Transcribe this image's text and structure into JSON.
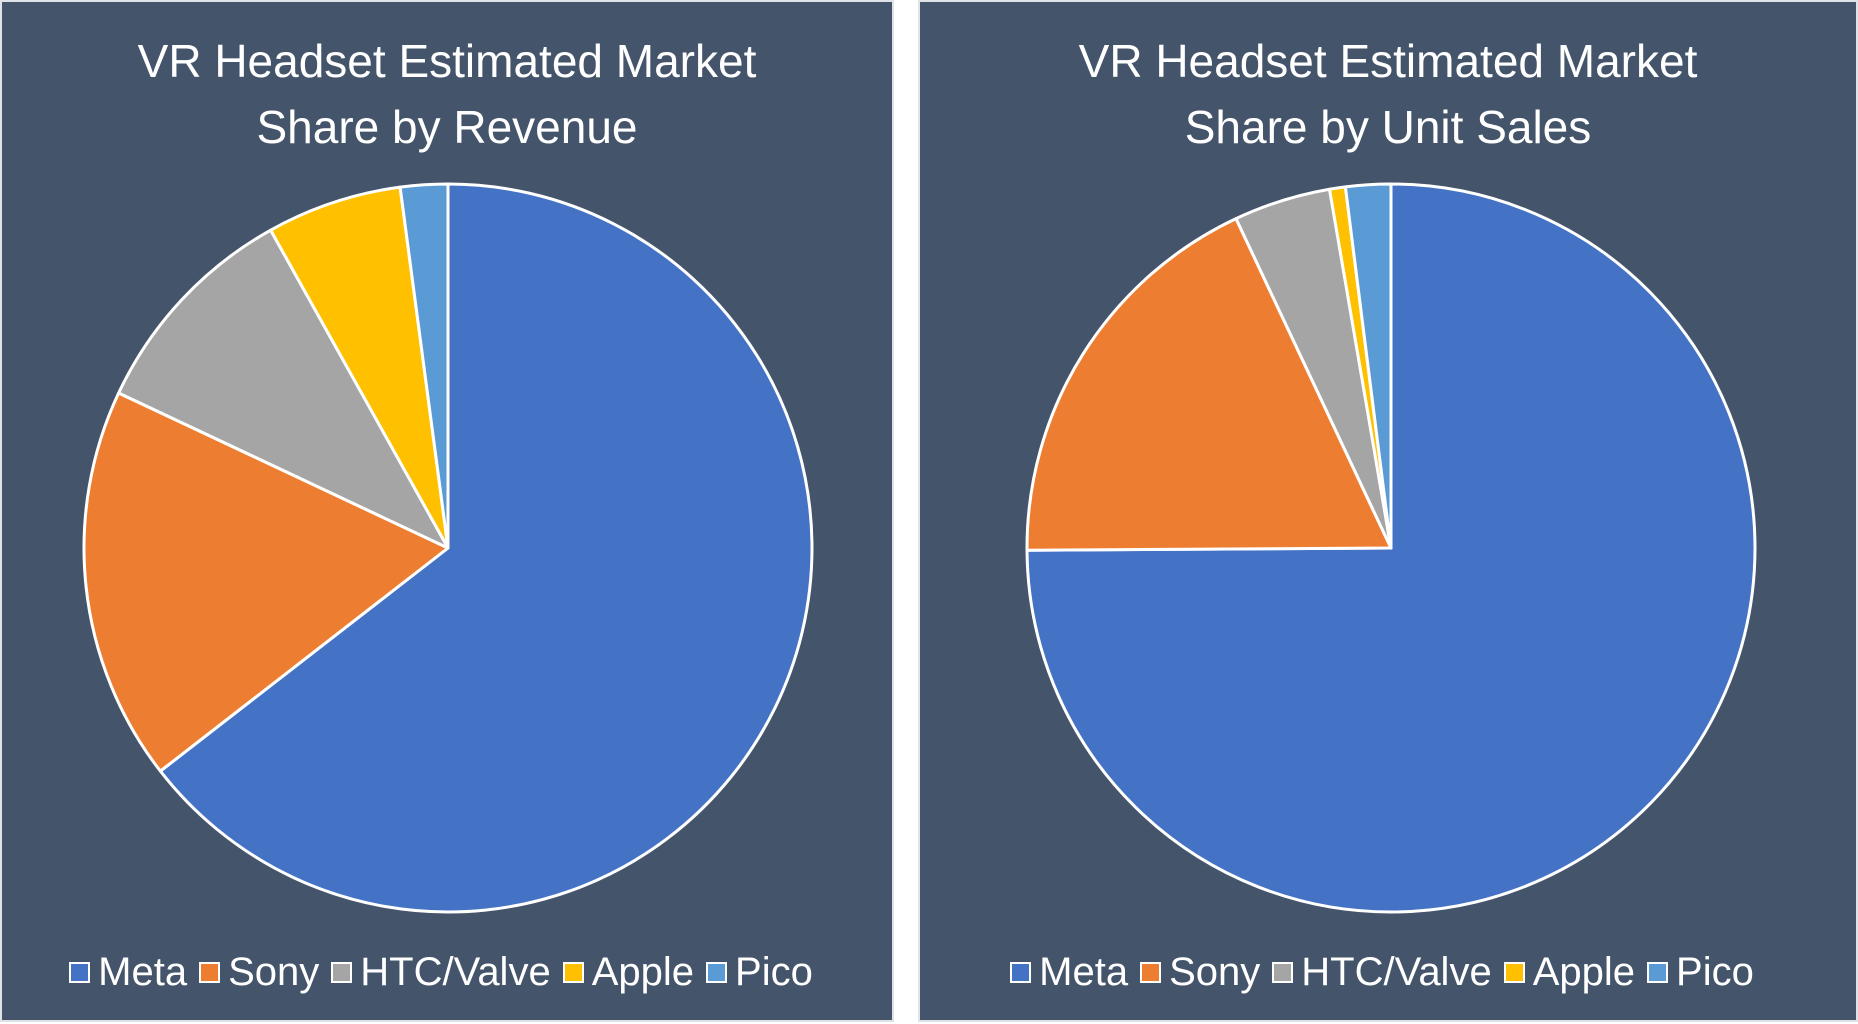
{
  "chart_data": [
    {
      "type": "pie",
      "title_lines": [
        "VR Headset Estimated Market",
        "Share by Revenue"
      ],
      "categories": [
        "Meta",
        "Sony",
        "HTC/Valve",
        "Apple",
        "Pico"
      ],
      "values": [
        64.5,
        17.5,
        9.9,
        6.0,
        2.1
      ],
      "unit": "%",
      "colors": [
        "#4472c4",
        "#ed7d31",
        "#a5a5a5",
        "#ffc000",
        "#5b9bd5"
      ],
      "start": "12 o'clock",
      "direction": "clockwise",
      "legend_position": "bottom"
    },
    {
      "type": "pie",
      "title_lines": [
        "VR Headset Estimated Market",
        "Share by Unit Sales"
      ],
      "categories": [
        "Meta",
        "Sony",
        "HTC/Valve",
        "Apple",
        "Pico"
      ],
      "values": [
        74.9,
        18.1,
        4.3,
        0.7,
        2.0
      ],
      "unit": "%",
      "colors": [
        "#4472c4",
        "#ed7d31",
        "#a5a5a5",
        "#ffc000",
        "#5b9bd5"
      ],
      "start": "12 o'clock",
      "direction": "clockwise",
      "legend_position": "bottom"
    }
  ]
}
